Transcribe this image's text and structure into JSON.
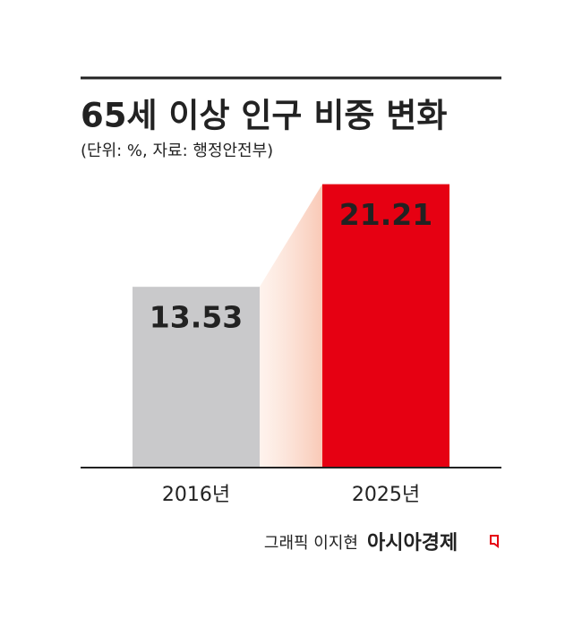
{
  "chart_data": {
    "type": "bar",
    "title": "65세 이상 인구 비중 변화",
    "subtitle": "(단위: %, 자료: 행정안전부)",
    "categories": [
      "2016년",
      "2025년"
    ],
    "values": [
      13.53,
      21.21
    ],
    "colors": [
      "#c9c9cb",
      "#e60012"
    ],
    "ylim": [
      0,
      24
    ],
    "credit": "그래픽 이지현",
    "brand": "아시아경제"
  }
}
